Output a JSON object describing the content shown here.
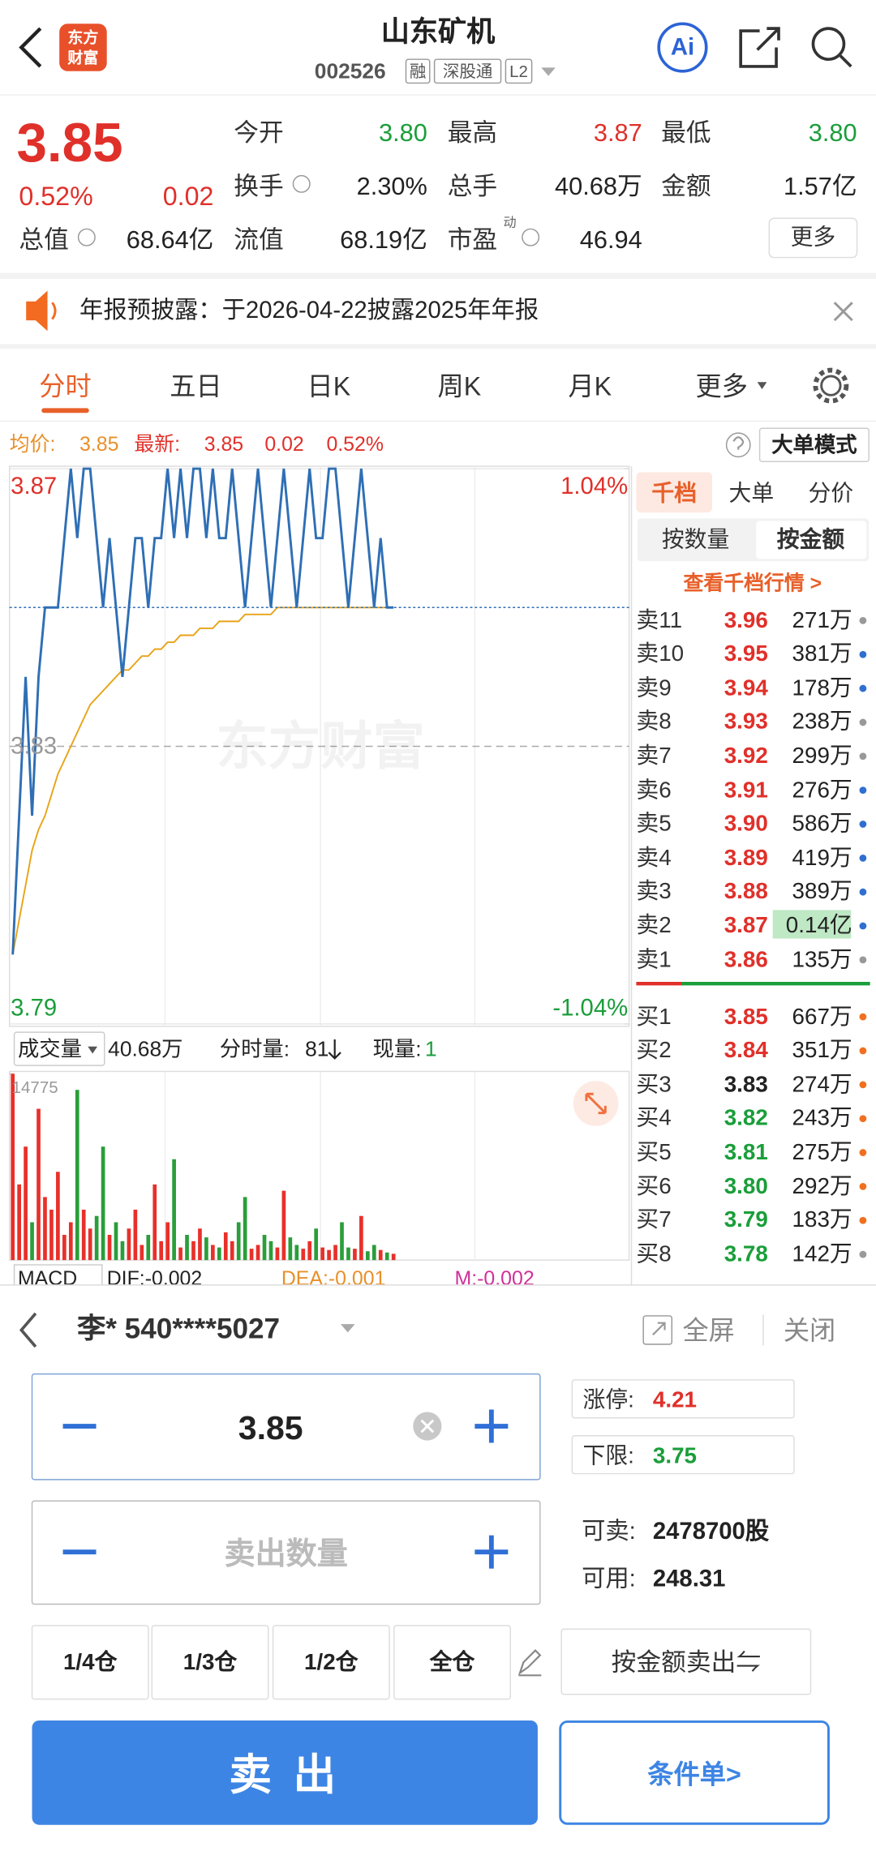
{
  "header": {
    "logo": [
      "东方",
      "财富"
    ],
    "title": "山东矿机",
    "code": "002526",
    "tags": [
      "融",
      "深股通",
      "L2"
    ],
    "ai": "Ai"
  },
  "quote": {
    "price": "3.85",
    "change_pct": "0.52%",
    "change": "0.02",
    "fields": [
      {
        "label": "今开",
        "value": "3.80",
        "tone": "down"
      },
      {
        "label": "最高",
        "value": "3.87",
        "tone": "up"
      },
      {
        "label": "最低",
        "value": "3.80",
        "tone": "down"
      },
      {
        "label": "换手",
        "value": "2.30%",
        "tone": "flat"
      },
      {
        "label": "总手",
        "value": "40.68万",
        "tone": "flat"
      },
      {
        "label": "金额",
        "value": "1.57亿",
        "tone": "flat"
      },
      {
        "label": "总值",
        "value": "68.64亿",
        "tone": "flat"
      },
      {
        "label": "流值",
        "value": "68.19亿",
        "tone": "flat"
      },
      {
        "label": "市盈",
        "value": "46.94",
        "tone": "flat"
      }
    ],
    "pe_sup": "动",
    "more": "更多"
  },
  "notice": {
    "text": "年报预披露：于2026-04-22披露2025年年报"
  },
  "tabs": {
    "items": [
      "分时",
      "五日",
      "日K",
      "周K",
      "月K",
      "更多"
    ]
  },
  "info": {
    "avg_label": "均价:",
    "avg": "3.85",
    "latest_label": "最新:",
    "latest": "3.85",
    "change": "0.02",
    "change_pct": "0.52%",
    "mode": "大单模式"
  },
  "watermark": "东方财富",
  "chart_data": [
    {
      "type": "line",
      "ylim": [
        3.79,
        3.87
      ],
      "yticks": [
        3.87,
        3.83,
        3.79
      ],
      "y2lim": [
        -1.04,
        1.04
      ],
      "y2ticks": [
        {
          "value": 1.04,
          "label": "1.04%"
        },
        {
          "value": -1.04,
          "label": "-1.04%"
        }
      ],
      "grid": true,
      "series": [
        {
          "color": "#2f6fb5",
          "values": [
            3.8,
            3.82,
            3.84,
            3.82,
            3.84,
            3.85,
            3.85,
            3.85,
            3.86,
            3.87,
            3.86,
            3.87,
            3.87,
            3.86,
            3.85,
            3.86,
            3.85,
            3.84,
            3.85,
            3.86,
            3.86,
            3.85,
            3.86,
            3.86,
            3.87,
            3.86,
            3.87,
            3.86,
            3.87,
            3.87,
            3.86,
            3.87,
            3.86,
            3.86,
            3.87,
            3.86,
            3.85,
            3.86,
            3.87,
            3.86,
            3.85,
            3.86,
            3.87,
            3.86,
            3.85,
            3.86,
            3.87,
            3.86,
            3.86,
            3.87,
            3.87,
            3.86,
            3.85,
            3.86,
            3.87,
            3.86,
            3.85,
            3.86,
            3.85,
            3.85
          ]
        },
        {
          "color": "#e8a317",
          "values": [
            3.8,
            3.805,
            3.81,
            3.815,
            3.818,
            3.82,
            3.823,
            3.826,
            3.828,
            3.83,
            3.832,
            3.834,
            3.836,
            3.837,
            3.838,
            3.839,
            3.84,
            3.841,
            3.841,
            3.842,
            3.843,
            3.843,
            3.844,
            3.844,
            3.845,
            3.845,
            3.846,
            3.846,
            3.846,
            3.847,
            3.847,
            3.847,
            3.848,
            3.848,
            3.848,
            3.848,
            3.849,
            3.849,
            3.849,
            3.849,
            3.849,
            3.85,
            3.85,
            3.85,
            3.85,
            3.85,
            3.85,
            3.85,
            3.85,
            3.85,
            3.85,
            3.85,
            3.85,
            3.85,
            3.85,
            3.85,
            3.85,
            3.85,
            3.85,
            3.85
          ]
        }
      ]
    },
    {
      "type": "bar",
      "ylim": [
        0,
        14775
      ],
      "yticks": [
        14775
      ],
      "up_color": "#e8302a",
      "down_color": "#2a9e3a",
      "values": [
        14775,
        6000,
        9000,
        3000,
        12000,
        5000,
        4000,
        7000,
        2000,
        3000,
        13500,
        4000,
        2500,
        3500,
        9000,
        2000,
        3000,
        1500,
        2500,
        4000,
        1200,
        2000,
        6000,
        1500,
        3000,
        8000,
        1000,
        2000,
        1500,
        2500,
        1800,
        1200,
        1000,
        2200,
        1500,
        3000,
        5000,
        900,
        1200,
        2000,
        1500,
        1000,
        5500,
        1800,
        1200,
        900,
        1500,
        2500,
        1000,
        800,
        1200,
        3000,
        1000,
        900,
        3500,
        700,
        1200,
        800,
        600,
        500
      ]
    }
  ],
  "volume_bar": {
    "label": "成交量",
    "total": "40.68万",
    "fenshi_label": "分时量:",
    "fenshi": "81",
    "now_label": "现量:",
    "now": "1"
  },
  "macd": {
    "label": "MACD",
    "dif": "DIF:-0.002",
    "dea": "DEA:-0.001",
    "m": "M:-0.002"
  },
  "book": {
    "tabs": [
      "千档",
      "大单",
      "分价"
    ],
    "modes": [
      "按数量",
      "按金额"
    ],
    "link": "查看千档行情 >",
    "asks": [
      {
        "label": "卖11",
        "price": "3.96",
        "amount": "271万",
        "tone": "up",
        "dot": "#999999"
      },
      {
        "label": "卖10",
        "price": "3.95",
        "amount": "381万",
        "tone": "up",
        "dot": "#2f6fd0"
      },
      {
        "label": "卖9",
        "price": "3.94",
        "amount": "178万",
        "tone": "up",
        "dot": "#2f6fd0"
      },
      {
        "label": "卖8",
        "price": "3.93",
        "amount": "238万",
        "tone": "up",
        "dot": "#999999"
      },
      {
        "label": "卖7",
        "price": "3.92",
        "amount": "299万",
        "tone": "up",
        "dot": "#999999"
      },
      {
        "label": "卖6",
        "price": "3.91",
        "amount": "276万",
        "tone": "up",
        "dot": "#2f6fd0"
      },
      {
        "label": "卖5",
        "price": "3.90",
        "amount": "586万",
        "tone": "up",
        "dot": "#2f6fd0"
      },
      {
        "label": "卖4",
        "price": "3.89",
        "amount": "419万",
        "tone": "up",
        "dot": "#2f6fd0"
      },
      {
        "label": "卖3",
        "price": "3.88",
        "amount": "389万",
        "tone": "up",
        "dot": "#2f6fd0"
      },
      {
        "label": "卖2",
        "price": "3.87",
        "amount": "0.14亿",
        "tone": "up",
        "dot": "#2f6fd0"
      },
      {
        "label": "卖1",
        "price": "3.86",
        "amount": "135万",
        "tone": "up",
        "dot": "#999999"
      }
    ],
    "bids": [
      {
        "label": "买1",
        "price": "3.85",
        "amount": "667万",
        "tone": "up",
        "dot": "#f07020"
      },
      {
        "label": "买2",
        "price": "3.84",
        "amount": "351万",
        "tone": "up",
        "dot": "#f07020"
      },
      {
        "label": "买3",
        "price": "3.83",
        "amount": "274万",
        "tone": "flat",
        "dot": "#f07020"
      },
      {
        "label": "买4",
        "price": "3.82",
        "amount": "243万",
        "tone": "down",
        "dot": "#f07020"
      },
      {
        "label": "买5",
        "price": "3.81",
        "amount": "275万",
        "tone": "down",
        "dot": "#f07020"
      },
      {
        "label": "买6",
        "price": "3.80",
        "amount": "292万",
        "tone": "down",
        "dot": "#f07020"
      },
      {
        "label": "买7",
        "price": "3.79",
        "amount": "183万",
        "tone": "down",
        "dot": "#f07020"
      },
      {
        "label": "买8",
        "price": "3.78",
        "amount": "142万",
        "tone": "down",
        "dot": "#999999"
      }
    ]
  },
  "trade": {
    "account": "李* 540****5027",
    "fullscreen": "全屏",
    "close": "关闭",
    "price": "3.85",
    "qty_placeholder": "卖出数量",
    "limit_up_label": "涨停:",
    "limit_up": "4.21",
    "limit_down_label": "下限:",
    "limit_down": "3.75",
    "sellable_label": "可卖:",
    "sellable": "2478700股",
    "available_label": "可用:",
    "available": "248.31",
    "positions": [
      "1/4仓",
      "1/3仓",
      "1/2仓",
      "全仓"
    ],
    "by_amount": "按金额卖出⇋",
    "sell": "卖 出",
    "conditional": "条件单>"
  }
}
